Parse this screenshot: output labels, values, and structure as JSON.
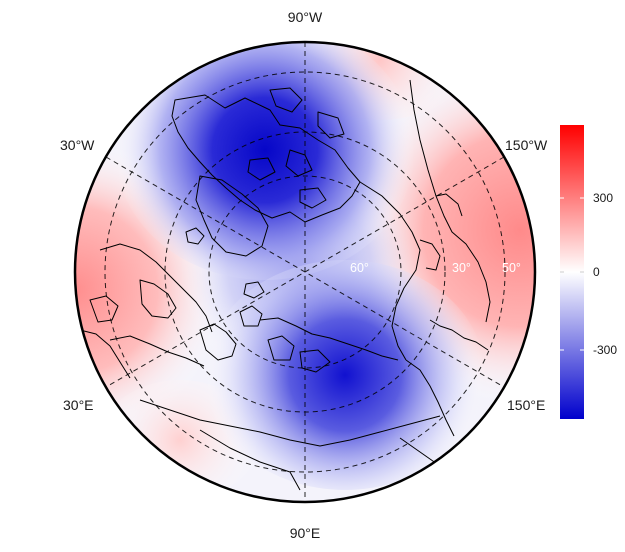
{
  "map": {
    "projection": "north-polar-stereographic",
    "longitude_labels": {
      "top": "90°W",
      "upper_left": "30°W",
      "upper_right": "150°W",
      "lower_left": "30°E",
      "lower_right": "150°E",
      "bottom": "90°E"
    },
    "latitude_labels": [
      "60°",
      "30°",
      "50°"
    ],
    "graticule_style": "dashed",
    "coastlines": "black outlines of continents and islands around the Arctic"
  },
  "colorbar": {
    "ticks": [
      "300",
      "0",
      "-300"
    ],
    "tick_values": [
      300,
      0,
      -300
    ],
    "range": [
      -400,
      400
    ],
    "colors": {
      "high": "#ff0000",
      "mid": "#ffffff",
      "low": "#0000cc"
    }
  },
  "field_colors": {
    "strong_negative": "#0a0ad2",
    "weak_negative": "#b4b6f4",
    "neutral": "#ffffff",
    "weak_positive": "#ffc8c8",
    "strong_positive": "#ff9090"
  }
}
